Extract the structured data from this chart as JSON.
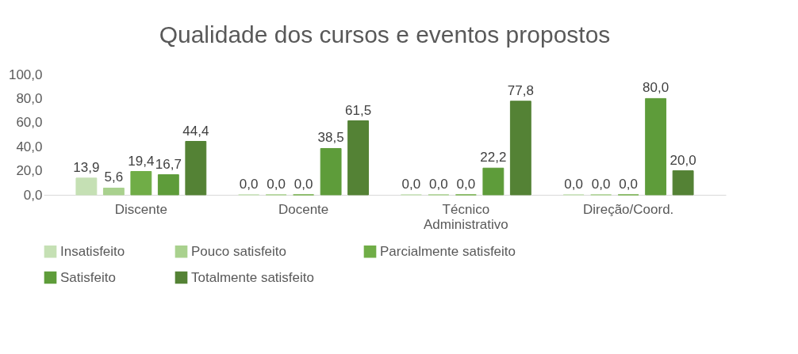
{
  "chart_data": {
    "type": "bar",
    "title": "Qualidade dos cursos e eventos propostos",
    "categories": [
      "Discente",
      "Docente",
      "Técnico Administrativo",
      "Direção/Coord."
    ],
    "series": [
      {
        "name": "Insatisfeito",
        "color": "#c5e0b4",
        "values": [
          13.9,
          0.0,
          0.0,
          0.0
        ],
        "value_labels": [
          "13,9",
          "0,0",
          "0,0",
          "0,0"
        ]
      },
      {
        "name": "Pouco satisfeito",
        "color": "#a9d18e",
        "values": [
          5.6,
          0.0,
          0.0,
          0.0
        ],
        "value_labels": [
          "5,6",
          "0,0",
          "0,0",
          "0,0"
        ]
      },
      {
        "name": "Parcialmente satisfeito",
        "color": "#70ad47",
        "values": [
          19.4,
          0.0,
          0.0,
          0.0
        ],
        "value_labels": [
          "19,4",
          "0,0",
          "0,0",
          "0,0"
        ]
      },
      {
        "name": "Satisfeito",
        "color": "#5e9c3a",
        "values": [
          16.7,
          38.5,
          22.2,
          80.0
        ],
        "value_labels": [
          "16,7",
          "38,5",
          "22,2",
          "80,0"
        ]
      },
      {
        "name": "Totalmente satisfeito",
        "color": "#548235",
        "values": [
          44.4,
          61.5,
          77.8,
          20.0
        ],
        "value_labels": [
          "44,4",
          "61,5",
          "77,8",
          "20,0"
        ]
      }
    ],
    "ylim": [
      0,
      100
    ],
    "yticks": [
      {
        "value": 0,
        "label": "0,0"
      },
      {
        "value": 20,
        "label": "20,0"
      },
      {
        "value": 40,
        "label": "40,0"
      },
      {
        "value": 60,
        "label": "60,0"
      },
      {
        "value": 80,
        "label": "80,0"
      },
      {
        "value": 100,
        "label": "100,0"
      }
    ],
    "grid": false,
    "legend": "bottom"
  }
}
